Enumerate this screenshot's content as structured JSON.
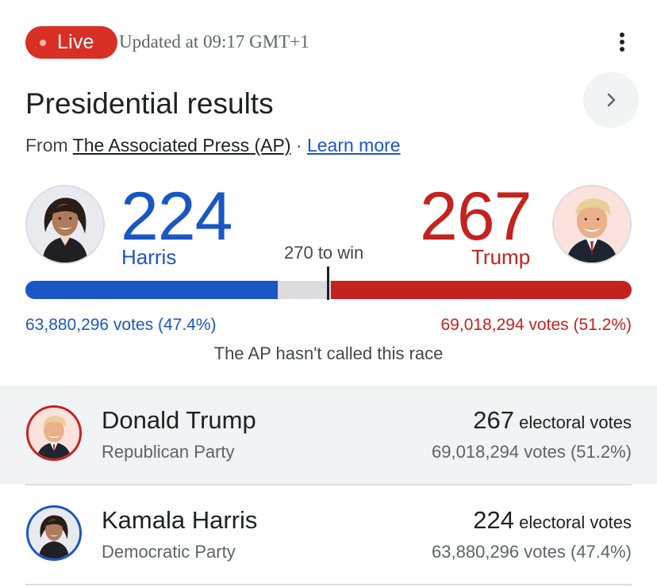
{
  "header": {
    "live_label": "Live",
    "updated_text": "Updated at 09:17 GMT+1",
    "menu_icon": "more-vert-icon"
  },
  "title": "Presidential results",
  "source": {
    "prefix": "From",
    "publisher": "The Associated Press (AP)",
    "separator": "·",
    "learn_more": "Learn more"
  },
  "race": {
    "to_win_label": "270 to win",
    "threshold": 270,
    "total_electoral_votes": 538,
    "status": "The AP hasn't called this race",
    "left": {
      "name": "Harris",
      "electoral_votes": "224",
      "electoral_value": 224,
      "votes_text": "63,880,296 votes (47.4%)",
      "color": "#1a56c4"
    },
    "right": {
      "name": "Trump",
      "electoral_votes": "267",
      "electoral_value": 267,
      "votes_text": "69,018,294 votes (51.2%)",
      "color": "#c5221f"
    }
  },
  "candidates": [
    {
      "name": "Donald Trump",
      "party": "Republican Party",
      "electoral_votes": "267",
      "electoral_label": "electoral votes",
      "votes_text": "69,018,294 votes (51.2%)",
      "ring_color": "#c5221f"
    },
    {
      "name": "Kamala Harris",
      "party": "Democratic Party",
      "electoral_votes": "224",
      "electoral_label": "electoral votes",
      "votes_text": "63,880,296 votes (47.4%)",
      "ring_color": "#1a56c4"
    }
  ]
}
